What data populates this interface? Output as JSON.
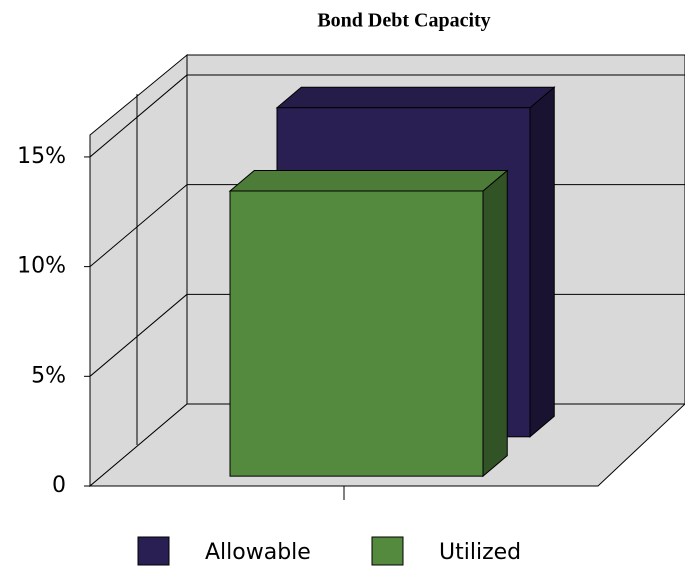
{
  "chart_data": {
    "type": "bar3d",
    "title": "Bond Debt Capacity",
    "categories": [
      null
    ],
    "series": [
      {
        "name": "Allowable",
        "color": "#2a1f52",
        "values": [
          15
        ]
      },
      {
        "name": "Utilized",
        "color": "#548a3e",
        "values": [
          13
        ]
      }
    ],
    "ylim": [
      0,
      16
    ],
    "yticks": [
      0,
      {
        "value": 5,
        "label": "5%"
      },
      {
        "value": 10,
        "label": "10%"
      },
      {
        "value": 15,
        "label": "15%"
      }
    ],
    "grid": true,
    "legend": "bottom"
  }
}
